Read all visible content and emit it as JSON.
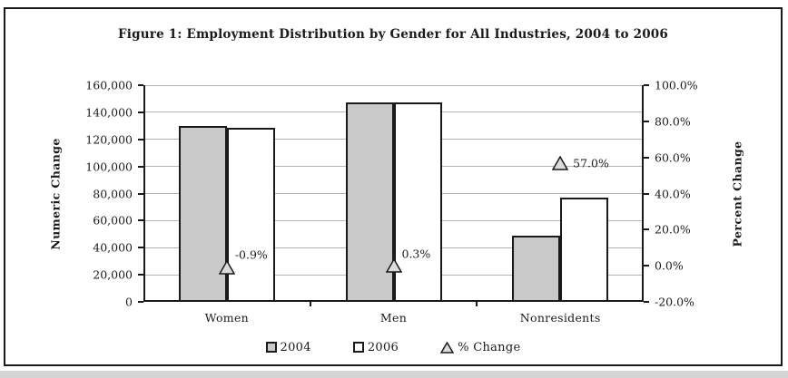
{
  "figure": {
    "title": "Figure 1: Employment Distribution by Gender for All Industries, 2004 to 2006"
  },
  "chart_data": {
    "type": "bar",
    "title": "Figure 1: Employment Distribution by Gender for All Industries, 2004 to 2006",
    "categories": [
      "Women",
      "Men",
      "Nonresidents"
    ],
    "series": [
      {
        "name": "2004",
        "type": "bar",
        "axis": "left",
        "color": "#c9c9c9",
        "values": [
          130000,
          147000,
          49000
        ]
      },
      {
        "name": "2006",
        "type": "bar",
        "axis": "left",
        "color": "#ffffff",
        "values": [
          128800,
          147400,
          77000
        ]
      },
      {
        "name": "% Change",
        "type": "triangle-marker",
        "axis": "right",
        "color": "#dcdcdc",
        "values": [
          -0.9,
          0.3,
          57.0
        ],
        "labels": [
          "-0.9%",
          "0.3%",
          "57.0%"
        ]
      }
    ],
    "left_axis": {
      "label": "Numeric Change",
      "min": 0,
      "max": 160000,
      "step": 20000,
      "tick_labels": [
        "0",
        "20,000",
        "40,000",
        "60,000",
        "80,000",
        "100,000",
        "120,000",
        "140,000",
        "160,000"
      ]
    },
    "right_axis": {
      "label": "Percent Change",
      "min": -20,
      "max": 100,
      "step": 20,
      "tick_labels": [
        "-20.0%",
        "0.0%",
        "20.0%",
        "40.0%",
        "60.0%",
        "80.0%",
        "100.0%"
      ]
    },
    "grid": true,
    "legend_position": "bottom",
    "colors": {
      "bar_2004": "#c9c9c9",
      "bar_2006": "#ffffff",
      "marker_fill": "#dcdcdc",
      "axis_ink": "#1a1a1a",
      "gridline": "#b5b5b5"
    }
  }
}
